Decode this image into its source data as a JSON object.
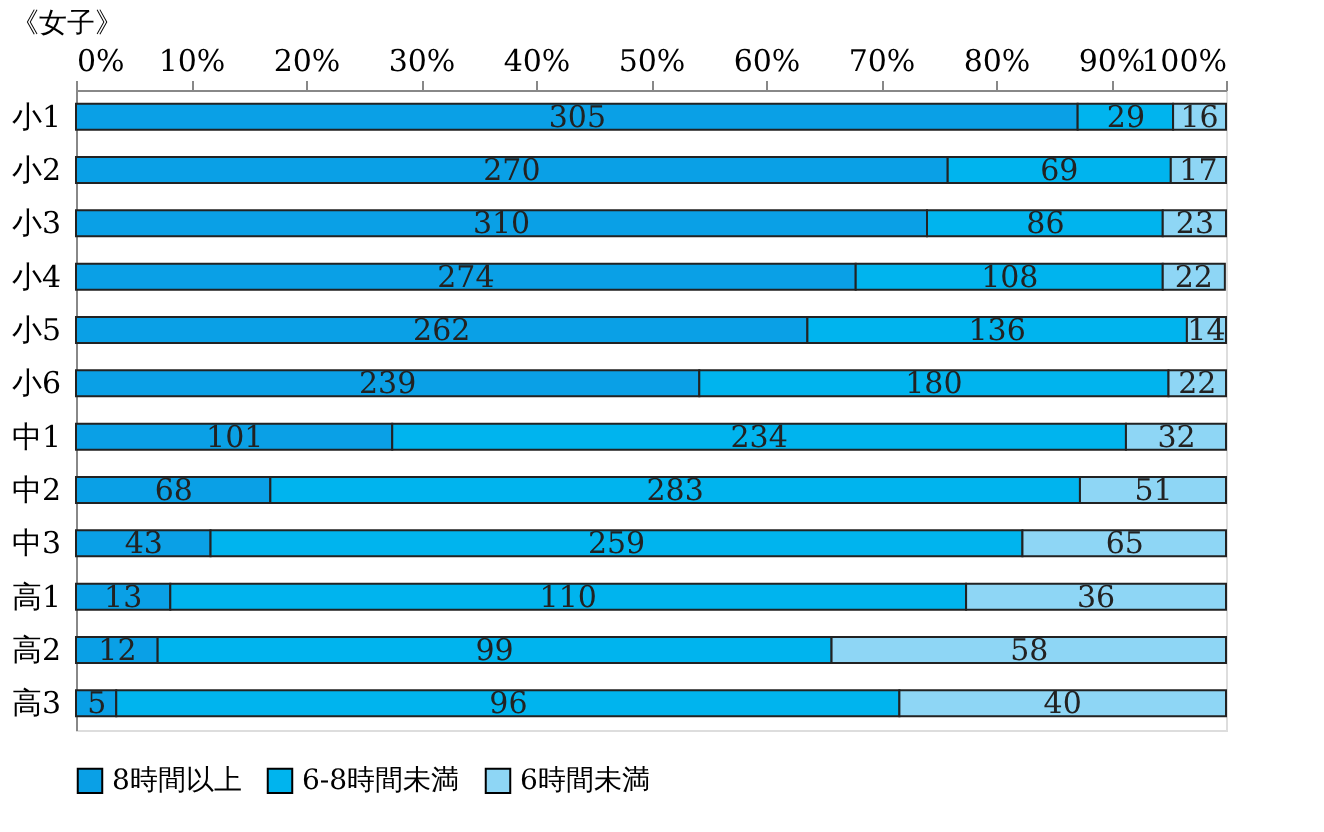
{
  "chart_data": {
    "type": "bar",
    "title": "《女子》",
    "orientation": "horizontal",
    "stacked": true,
    "categories": [
      "小1",
      "小2",
      "小3",
      "小4",
      "小5",
      "小6",
      "中1",
      "中2",
      "中3",
      "高1",
      "高2",
      "高3"
    ],
    "series": [
      {
        "name": "8時間以上",
        "color": "#0aa0e6",
        "values": [
          87.1,
          75.8,
          74.0,
          67.8,
          63.6,
          54.2,
          27.5,
          16.9,
          11.7,
          8.2,
          7.1,
          3.5
        ]
      },
      {
        "name": "6-8時間未満",
        "color": "#00b4ee",
        "values": [
          8.3,
          19.4,
          20.5,
          26.7,
          33.0,
          40.8,
          63.8,
          70.4,
          70.6,
          69.2,
          58.6,
          68.1
        ]
      },
      {
        "name": "6時間未満",
        "color": "#8ed6f5",
        "values": [
          4.6,
          4.8,
          5.5,
          5.4,
          3.4,
          5.0,
          8.7,
          12.7,
          17.7,
          22.6,
          34.3,
          28.4
        ]
      }
    ],
    "annotations": [
      {
        "text": "305",
        "x": 43.6,
        "y": "小1"
      },
      {
        "text": "29",
        "x": 91.3,
        "y": "小1"
      },
      {
        "text": "16",
        "x": 97.7,
        "y": "小1"
      },
      {
        "text": "270",
        "x": 37.9,
        "y": "小2"
      },
      {
        "text": "69",
        "x": 85.5,
        "y": "小2"
      },
      {
        "text": "17",
        "x": 97.6,
        "y": "小2"
      },
      {
        "text": "310",
        "x": 37.0,
        "y": "小3"
      },
      {
        "text": "86",
        "x": 84.3,
        "y": "小3"
      },
      {
        "text": "23",
        "x": 97.3,
        "y": "小3"
      },
      {
        "text": "274",
        "x": 33.9,
        "y": "小4"
      },
      {
        "text": "108",
        "x": 81.2,
        "y": "小4"
      },
      {
        "text": "22",
        "x": 97.2,
        "y": "小4"
      },
      {
        "text": "262",
        "x": 31.8,
        "y": "小5"
      },
      {
        "text": "136",
        "x": 80.1,
        "y": "小5"
      },
      {
        "text": "14",
        "x": 98.3,
        "y": "小5"
      },
      {
        "text": "239",
        "x": 27.1,
        "y": "小6"
      },
      {
        "text": "180",
        "x": 74.6,
        "y": "小6"
      },
      {
        "text": "22",
        "x": 97.5,
        "y": "小6"
      },
      {
        "text": "101",
        "x": 13.8,
        "y": "中1"
      },
      {
        "text": "234",
        "x": 59.4,
        "y": "中1"
      },
      {
        "text": "32",
        "x": 95.7,
        "y": "中1"
      },
      {
        "text": "68",
        "x": 8.5,
        "y": "中2"
      },
      {
        "text": "283",
        "x": 52.1,
        "y": "中2"
      },
      {
        "text": "51",
        "x": 93.7,
        "y": "中2"
      },
      {
        "text": "43",
        "x": 5.9,
        "y": "中3"
      },
      {
        "text": "259",
        "x": 47.0,
        "y": "中3"
      },
      {
        "text": "65",
        "x": 91.2,
        "y": "中3"
      },
      {
        "text": "13",
        "x": 4.1,
        "y": "高1"
      },
      {
        "text": "110",
        "x": 42.8,
        "y": "高1"
      },
      {
        "text": "36",
        "x": 88.7,
        "y": "高1"
      },
      {
        "text": "12",
        "x": 3.6,
        "y": "高2"
      },
      {
        "text": "99",
        "x": 36.4,
        "y": "高2"
      },
      {
        "text": "58",
        "x": 82.9,
        "y": "高2"
      },
      {
        "text": "5",
        "x": 1.8,
        "y": "高3"
      },
      {
        "text": "96",
        "x": 37.6,
        "y": "高3"
      },
      {
        "text": "40",
        "x": 85.8,
        "y": "高3"
      }
    ],
    "xlim": [
      0,
      100
    ],
    "xticks": [
      {
        "value": 0,
        "label": "0%"
      },
      {
        "value": 10,
        "label": "10%"
      },
      {
        "value": 20,
        "label": "20%"
      },
      {
        "value": 30,
        "label": "30%"
      },
      {
        "value": 40,
        "label": "40%"
      },
      {
        "value": 50,
        "label": "50%"
      },
      {
        "value": 60,
        "label": "60%"
      },
      {
        "value": 70,
        "label": "70%"
      },
      {
        "value": 80,
        "label": "80%"
      },
      {
        "value": 90,
        "label": "90%"
      },
      {
        "value": 100,
        "label": "100%"
      }
    ],
    "legend": "bottom"
  }
}
